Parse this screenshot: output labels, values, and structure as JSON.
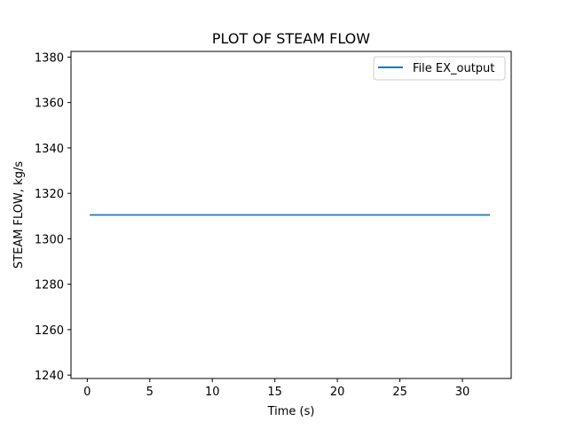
{
  "chart_data": {
    "type": "line",
    "title": "PLOT OF STEAM FLOW",
    "xlabel": "Time (s)",
    "ylabel": "STEAM FLOW, kg/s",
    "xlim": [
      -1.3,
      33.9
    ],
    "ylim": [
      1238.5,
      1382.5
    ],
    "xticks": [
      0,
      5,
      10,
      15,
      20,
      25,
      30
    ],
    "yticks": [
      1240,
      1260,
      1280,
      1300,
      1320,
      1340,
      1360,
      1380
    ],
    "grid": false,
    "legend_position": "top-right",
    "colors": {
      "series": "#1f77b4",
      "axes": "#000000",
      "background": "#ffffff"
    },
    "series": [
      {
        "name": "File EX_output",
        "x": [
          0.2,
          32.2
        ],
        "y": [
          1310.5,
          1310.5
        ]
      }
    ]
  }
}
